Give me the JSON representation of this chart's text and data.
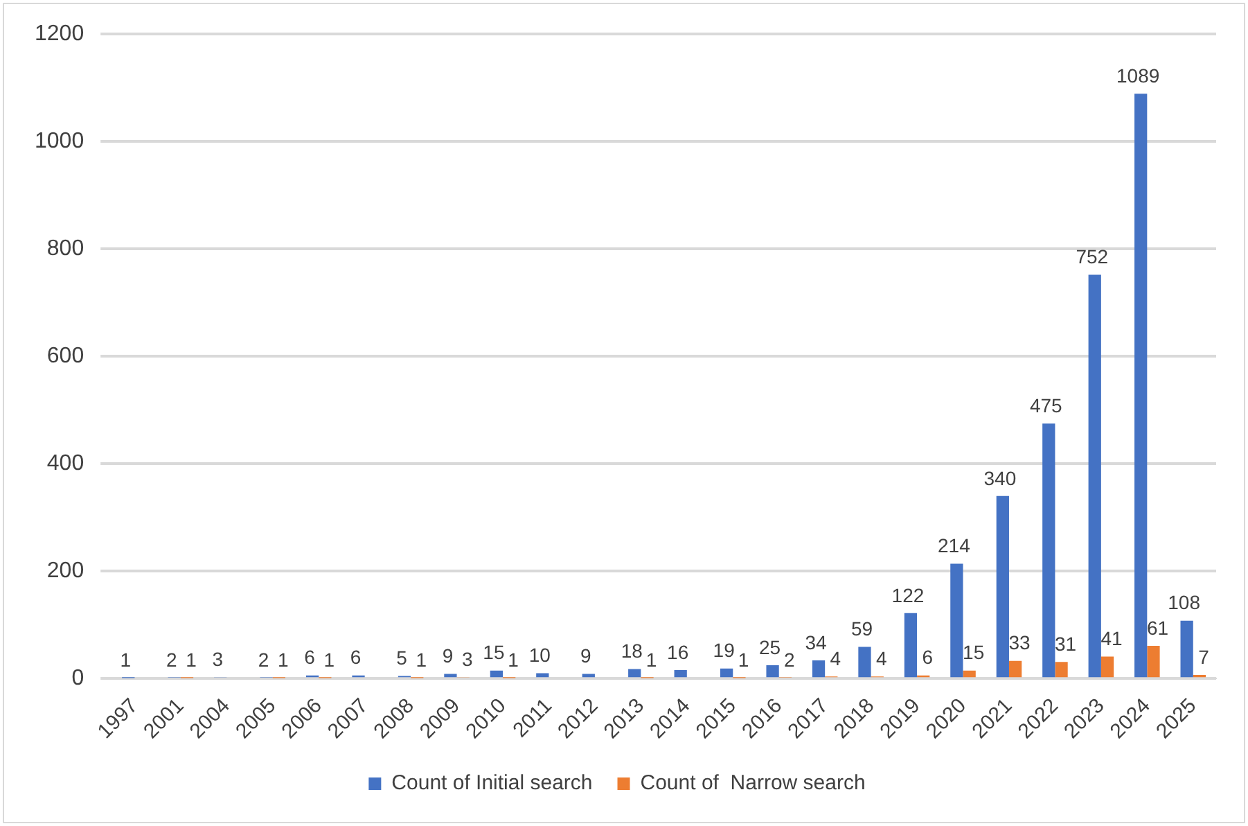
{
  "chart_data": {
    "type": "bar",
    "categories": [
      "1997",
      "2001",
      "2004",
      "2005",
      "2006",
      "2007",
      "2008",
      "2009",
      "2010",
      "2011",
      "2012",
      "2013",
      "2014",
      "2015",
      "2016",
      "2017",
      "2018",
      "2019",
      "2020",
      "2021",
      "2022",
      "2023",
      "2024",
      "2025"
    ],
    "series": [
      {
        "name": "Count of Initial search",
        "color": "#4472c4",
        "values": [
          1,
          2,
          3,
          2,
          6,
          6,
          5,
          9,
          15,
          10,
          9,
          18,
          16,
          19,
          25,
          34,
          59,
          122,
          214,
          340,
          475,
          752,
          1089,
          108
        ]
      },
      {
        "name": "Count of  Narrow search",
        "color": "#ed7d31",
        "values": [
          null,
          1,
          null,
          1,
          1,
          null,
          1,
          3,
          1,
          null,
          null,
          1,
          null,
          1,
          2,
          4,
          4,
          6,
          15,
          33,
          31,
          41,
          61,
          7
        ]
      }
    ],
    "ylim": [
      0,
      1200
    ],
    "yticks": [
      0,
      200,
      400,
      600,
      800,
      1000,
      1200
    ],
    "grid": "y",
    "legend": "bottom",
    "data_labels": true
  }
}
